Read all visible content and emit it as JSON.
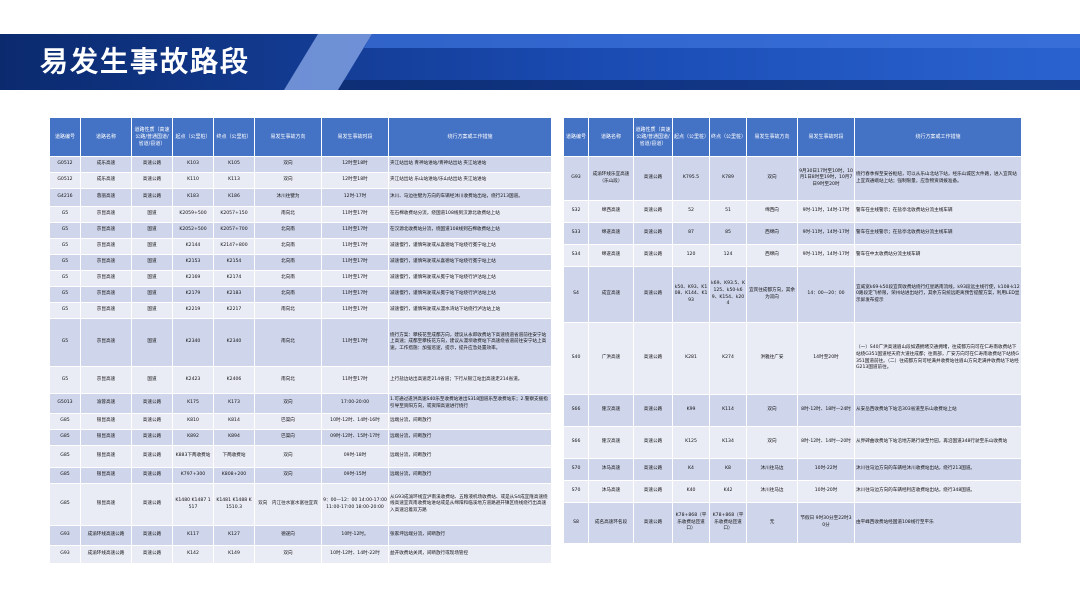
{
  "title": "易发生事故路段",
  "colors": {
    "banner_dark": "#0d2f78",
    "banner_mid": "#1d56c4",
    "banner_light": "#6f8fd6",
    "header_bg": "#4472c4",
    "row_odd": "#cfd5ea",
    "row_even": "#e9ebf5"
  },
  "left_table": {
    "headers": [
      "道路编号",
      "道路名称",
      "道路性质（高速公路/普通国道/省道/县道）",
      "起点（公里桩）",
      "终点（公里桩）",
      "易发生事故方向",
      "易发生事故时段",
      "绕行方案或工作措施"
    ],
    "rows": [
      [
        "G0512",
        "成乐高速",
        "高速公路",
        "K103",
        "K105",
        "双向",
        "12时至18时",
        "夹江站出站 青神站进站/青神站出站 夹江站进站"
      ],
      [
        "G0512",
        "成乐高速",
        "高速公路",
        "K110",
        "K113",
        "双向",
        "12时至18时",
        "夹江站出站 乐山站进站/乐山站出站 夹江站进站"
      ],
      [
        "G4216",
        "蓉丽高速",
        "高速公路",
        "K183",
        "K186",
        "沐川往犍为",
        "12时-17时",
        "沐川、马边往犍为方向的车辆经沐川收费站出站，绕行213国道。"
      ],
      [
        "G5",
        "京昆高速",
        "国道",
        "K2059+500",
        "K2057+150",
        "南向北",
        "11时至17时",
        "在石棉收费站分流，绕国道108线到汉源北收费站上站"
      ],
      [
        "G5",
        "京昆高速",
        "国道",
        "K2052+500",
        "K2057+700",
        "北向南",
        "11时至17时",
        "在汉源北收费站分流，绕国道108线到石棉收费站上站"
      ],
      [
        "G5",
        "京昆高速",
        "国道",
        "K2144",
        "K2147+800",
        "北向南",
        "11时至17时",
        "减速慢行，谨慎驾驶或从喜德站下站绕行冕宁站上站"
      ],
      [
        "G5",
        "京昆高速",
        "国道",
        "K2153",
        "K2154",
        "北向南",
        "11时至17时",
        "减速慢行，谨慎驾驶或从喜德站下站绕行冕宁站上站"
      ],
      [
        "G5",
        "京昆高速",
        "国道",
        "K2169",
        "K2174",
        "北向南",
        "11时至17时",
        "减速慢行，谨慎驾驶或从冕宁站下站绕行泸沽站上站"
      ],
      [
        "G5",
        "京昆高速",
        "国道",
        "K2179",
        "K2183",
        "北向南",
        "11时至17时",
        "减速慢行，谨慎驾驶或从冕宁站下站绕行泸沽站上站"
      ],
      [
        "G5",
        "京昆高速",
        "国道",
        "K2219",
        "K2217",
        "南向北",
        "11时至17时",
        "减速慢行，谨慎驾驶或从漫水湾站下站绕行泸沽站上站"
      ],
      [
        "G5",
        "京昆高速",
        "国道",
        "K2340",
        "K2340",
        "南向北",
        "11时至17时",
        "绕行方案：攀枝花至成都方向，建议从永郎收费站下高速绕道省道前往安宁站上高速；成都至攀枝花方向，建议从漫坝收费站下高速绕省道前往安宁站上高速。工作措施：加强巡逻，提示，提升应急处置效率。"
      ],
      [
        "G5",
        "京昆高速",
        "国道",
        "K2423",
        "K2406",
        "南向北",
        "11时至17时",
        "上行盐边站出高速走214省道；下行从银江站出高速走214省道。"
      ],
      [
        "G5013",
        "渝蓉高速",
        "高速公路",
        "K175",
        "K173",
        "双向",
        "17:00-20:00",
        "1.可通过遂洪高速S40乐至收费站进出S318国道乐至收费站东；2.警察支援指引导至资阳方向，或资阳高速进行绕行"
      ],
      [
        "G85",
        "银昆高速",
        "高速公路",
        "K810",
        "K814",
        "巴渠向",
        "10时-12时、14时-16时",
        "远端分流，间断放行"
      ],
      [
        "G85",
        "银昆高速",
        "高速公路",
        "K892",
        "K894",
        "巴渠向",
        "09时-12时、15时-17时",
        "远端分流，间断放行"
      ],
      [
        "G85",
        "银昆高速",
        "高速公路",
        "K883下两收费站",
        "下两收费站",
        "双向",
        "09时-18时",
        "远端分流，间断放行"
      ],
      [
        "G85",
        "银昆高速",
        "高速公路",
        "K797+300",
        "K808+200",
        "双向",
        "09时-15时",
        "远端分流，间断放行"
      ],
      [
        "G85",
        "银昆高速",
        "高速公路",
        "K1480 K1487 1517",
        "K1481 K1488 K1510.3",
        "双向　内江往水富水富往宜宾",
        "9：00—12：00 14:00-17:00 11:00-17:00 18:00-20:00",
        "从G93成渝环线宜泸南溪收费站、五粮液机场收费站、或是从S4成宜隆高速绕线高速宜宾南收费站进站或是从绵阳和临溪地方道路避开镇区绕线绕行出高速入高速沿着双方路"
      ],
      [
        "G93",
        "成渝环线高速公路",
        "高速公路",
        "K117",
        "K127",
        "德遂向",
        "10时-12时。",
        "张家坪远端分流，间断放行"
      ],
      [
        "G93",
        "成渝环线高速公路",
        "高速公路",
        "K142",
        "K149",
        "双向",
        "10时-12时、14时-22时",
        "益开收费站关闭，间断放行或现场管控"
      ]
    ]
  },
  "right_table": {
    "headers": [
      "道路编号",
      "道路名称",
      "道路性质（高速公路/普通国道/省道/县道）",
      "起点（公里桩）",
      "终点（公里桩）",
      "易发生事故方向",
      "易发生事故时段",
      "绕行方案或工作措施"
    ],
    "rows": [
      [
        "G93",
        "成渝环线乐宜高速（乐山段）",
        "高速公路",
        "K795.5",
        "K789",
        "双向",
        "9月30日17时至10时，10月1日8时至19时，10月7日9时至20时",
        "绕行春季探至安谷枢纽，可以从乐山北站下站，经乐山城区大件路，进入宜宾站上宜宾通峨站上站；强制限量，应急物资调拨准备。"
      ],
      [
        "S32",
        "绵西高速",
        "高速公路",
        "52",
        "51",
        "绵西向",
        "9时-11时，14时-17时",
        "警车在主线警示；在盐亭北收费站分流主线车辆"
      ],
      [
        "S33",
        "绵遂高速",
        "高速公路",
        "87",
        "85",
        "西绵向",
        "9时-11时，14时-17时",
        "警车在主线警示；在盐亭北收费站分流主线车辆"
      ],
      [
        "S34",
        "绵遂高速",
        "高速公路",
        "120",
        "124",
        "西绵向",
        "9时-11时，14时-17时",
        "警车在中太收费站分流主线车辆"
      ],
      [
        "S4",
        "成宜高速",
        "高速公路",
        "k50、K93、K108、K144、K193",
        "k69、K93.5、K125、k50-k69、K154、k204",
        "宜宾往成都方向，其余为双向",
        "14：00—20：00",
        "宜威宽k69-k50段宜宾收费站绕行红星路南流线，k93段远主线行使，k108-k120路段定飞桥限，荣州站进出站行，其余方向统远距离预告提醒方案，利用LED显示屏发布提示"
      ],
      [
        "S40",
        "广洪高速",
        "高速公路",
        "K281",
        "K274",
        "洪雅往广安",
        "14时至20时",
        "（一）S40广洪高速眉山段如遇拥堵交通拥堵，往成都方向可在仁寿南收费站下站绕G351国道经天府大道往成都；往南部，广安方向可在仁寿南收费站下站绕G351国道前往。（二）往成都方向可经满井收费站往眉山方向走满井收费站下站经G213国道前往。"
      ],
      [
        "S66",
        "隆汉高速",
        "高速公路",
        "K99",
        "K114",
        "双向",
        "8时-12时、18时—24时",
        "从安岳西收费站下站沿303省道至乐山收费站上站"
      ],
      [
        "S66",
        "隆汉高速",
        "高速公路",
        "K125",
        "K134",
        "双向",
        "8时-12时、14时—20时",
        "从界碑曲收费站下站沿地方路行驶至竹园，再沿国道348行驶至乐山收费站"
      ],
      [
        "S70",
        "沐马高速",
        "高速公路",
        "K4",
        "K8",
        "沐川往马边",
        "10时-22时",
        "沐川往马边方向的车辆经沐川收费站出站，绕行213国道。"
      ],
      [
        "S70",
        "沐马高速",
        "高速公路",
        "K40",
        "K42",
        "沐川往马边",
        "10时-20时",
        "沐川往马边方向的车辆经利店收费站出站，绕行348国道。"
      ],
      [
        "S8",
        "成名高速环名段",
        "高速公路",
        "K78+868（平乐收费站匝道口）",
        "K78+868（平乐收费站匝道口）",
        "无",
        "节假日 9时30分至22时30分",
        "由平峰西收费站经国道108线行至平乐"
      ]
    ]
  }
}
